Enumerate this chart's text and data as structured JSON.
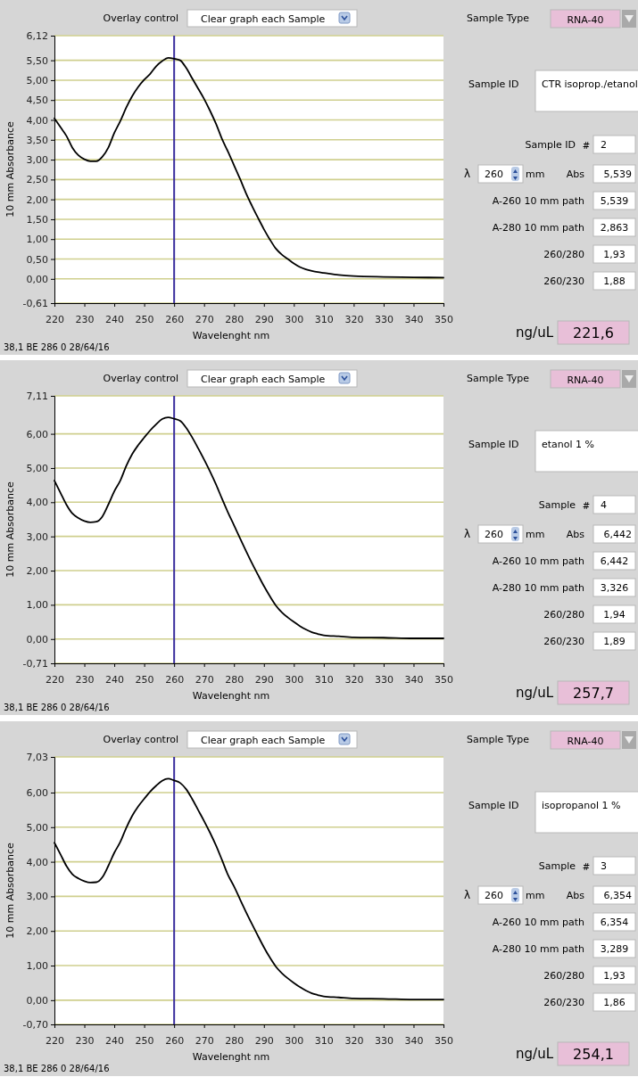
{
  "chart_data": [
    {
      "type": "line",
      "xlabel": "Wavelenght nm",
      "ylabel": "10 mm Absorbance",
      "xlim": [
        220,
        350
      ],
      "xticks": [
        220,
        230,
        240,
        250,
        260,
        270,
        280,
        290,
        300,
        310,
        320,
        330,
        340,
        350
      ],
      "ylim": [
        -0.61,
        6.12
      ],
      "yticks": [
        {
          "value": -0.61,
          "label": "-0,61"
        },
        {
          "value": 0,
          "label": "0,00"
        },
        {
          "value": 0.5,
          "label": "0,50"
        },
        {
          "value": 1,
          "label": "1,00"
        },
        {
          "value": 1.5,
          "label": "1,50"
        },
        {
          "value": 2,
          "label": "2,00"
        },
        {
          "value": 2.5,
          "label": "2,50"
        },
        {
          "value": 3,
          "label": "3,00"
        },
        {
          "value": 3.5,
          "label": "3,50"
        },
        {
          "value": 4,
          "label": "4,00"
        },
        {
          "value": 4.5,
          "label": "4,50"
        },
        {
          "value": 5,
          "label": "5,00"
        },
        {
          "value": 5.5,
          "label": "5,50"
        },
        {
          "value": 6.12,
          "label": "6,12"
        }
      ],
      "grid": "y",
      "ref_lines": [
        {
          "axis": "x",
          "value": 260,
          "color": "#3b2f9e"
        }
      ],
      "annotations": [
        "Overlay control",
        "Clear graph each Sample",
        "38,1  BE 286 0 28/64/16"
      ],
      "x": [
        220,
        222,
        224,
        226,
        228,
        230,
        232,
        234,
        236,
        238,
        240,
        242,
        244,
        246,
        248,
        250,
        252,
        254,
        256,
        258,
        260,
        262,
        264,
        266,
        268,
        270,
        272,
        274,
        276,
        278,
        280,
        282,
        284,
        286,
        288,
        290,
        292,
        294,
        296,
        298,
        300,
        302,
        304,
        306,
        308,
        310,
        315,
        320,
        330,
        340,
        350
      ],
      "series": [
        {
          "color": "#000000",
          "values": [
            4.04,
            3.82,
            3.6,
            3.3,
            3.11,
            3.01,
            2.96,
            2.96,
            3.07,
            3.3,
            3.67,
            3.97,
            4.31,
            4.6,
            4.83,
            5.01,
            5.16,
            5.35,
            5.48,
            5.56,
            5.54,
            5.5,
            5.31,
            5.05,
            4.79,
            4.53,
            4.23,
            3.9,
            3.52,
            3.2,
            2.86,
            2.52,
            2.16,
            1.84,
            1.54,
            1.25,
            0.99,
            0.76,
            0.61,
            0.5,
            0.39,
            0.3,
            0.24,
            0.2,
            0.17,
            0.15,
            0.1,
            0.07,
            0.05,
            0.04,
            0.03
          ]
        }
      ]
    },
    {
      "type": "other",
      "annotations": [
        "Sample Type",
        "RNA-40",
        "Sample ID",
        "CTR isoprop./etanol",
        "Sample ID",
        "#",
        "2",
        "λ",
        "260",
        "mm",
        "Abs",
        "5,539",
        "A-260 10 mm path",
        "5,539",
        "A-280 10 mm path",
        "2,863",
        "260/280",
        "1,93",
        "260/230",
        "1,88",
        "ng/uL",
        "221,6"
      ]
    },
    {
      "type": "line",
      "xlabel": "Wavelenght nm",
      "ylabel": "10 mm Absorbance",
      "xlim": [
        220,
        350
      ],
      "xticks": [
        220,
        230,
        240,
        250,
        260,
        270,
        280,
        290,
        300,
        310,
        320,
        330,
        340,
        350
      ],
      "ylim": [
        -0.71,
        7.11
      ],
      "yticks": [
        {
          "value": -0.71,
          "label": "-0,71"
        },
        {
          "value": 0,
          "label": "0,00"
        },
        {
          "value": 1,
          "label": "1,00"
        },
        {
          "value": 2,
          "label": "2,00"
        },
        {
          "value": 3,
          "label": "3,00"
        },
        {
          "value": 4,
          "label": "4,00"
        },
        {
          "value": 5,
          "label": "5,00"
        },
        {
          "value": 6,
          "label": "6,00"
        },
        {
          "value": 7.11,
          "label": "7,11"
        }
      ],
      "grid": "y",
      "ref_lines": [
        {
          "axis": "x",
          "value": 260,
          "color": "#3b2f9e"
        }
      ],
      "annotations": [
        "Overlay control",
        "Clear graph each Sample",
        "38,1  BE 286 0 28/64/16"
      ],
      "x": [
        220,
        222,
        224,
        226,
        228,
        230,
        232,
        234,
        236,
        238,
        240,
        242,
        244,
        246,
        248,
        250,
        252,
        254,
        256,
        258,
        260,
        262,
        264,
        266,
        268,
        270,
        272,
        274,
        276,
        278,
        280,
        282,
        284,
        286,
        288,
        290,
        292,
        294,
        296,
        298,
        300,
        302,
        304,
        306,
        308,
        310,
        315,
        320,
        330,
        340,
        350
      ],
      "series": [
        {
          "color": "#000000",
          "values": [
            4.63,
            4.28,
            3.93,
            3.67,
            3.54,
            3.45,
            3.41,
            3.43,
            3.58,
            3.93,
            4.32,
            4.63,
            5.06,
            5.41,
            5.67,
            5.89,
            6.1,
            6.28,
            6.43,
            6.48,
            6.44,
            6.38,
            6.18,
            5.9,
            5.58,
            5.25,
            4.9,
            4.52,
            4.1,
            3.7,
            3.33,
            2.95,
            2.58,
            2.22,
            1.88,
            1.55,
            1.25,
            0.98,
            0.78,
            0.63,
            0.5,
            0.38,
            0.28,
            0.2,
            0.15,
            0.11,
            0.08,
            0.05,
            0.04,
            0.02,
            0.02
          ]
        }
      ]
    },
    {
      "type": "other",
      "annotations": [
        "Sample Type",
        "RNA-40",
        "Sample ID",
        "etanol 1 %",
        "Sample",
        "#",
        "4",
        "λ",
        "260",
        "mm",
        "Abs",
        "6,442",
        "A-260 10 mm path",
        "6,442",
        "A-280 10 mm path",
        "3,326",
        "260/280",
        "1,94",
        "260/230",
        "1,89",
        "ng/uL",
        "257,7"
      ]
    },
    {
      "type": "line",
      "xlabel": "Wavelenght nm",
      "ylabel": "10 mm Absorbance",
      "xlim": [
        220,
        350
      ],
      "xticks": [
        220,
        230,
        240,
        250,
        260,
        270,
        280,
        290,
        300,
        310,
        320,
        330,
        340,
        350
      ],
      "ylim": [
        -0.7,
        7.03
      ],
      "yticks": [
        {
          "value": -0.7,
          "label": "-0,70"
        },
        {
          "value": 0,
          "label": "0,00"
        },
        {
          "value": 1,
          "label": "1,00"
        },
        {
          "value": 2,
          "label": "2,00"
        },
        {
          "value": 3,
          "label": "3,00"
        },
        {
          "value": 4,
          "label": "4,00"
        },
        {
          "value": 5,
          "label": "5,00"
        },
        {
          "value": 6,
          "label": "6,00"
        },
        {
          "value": 7.03,
          "label": "7,03"
        }
      ],
      "grid": "y",
      "ref_lines": [
        {
          "axis": "x",
          "value": 260,
          "color": "#3b2f9e"
        }
      ],
      "annotations": [
        "Overlay control",
        "Clear graph each Sample",
        "38,1  BE 286 0 28/64/16"
      ],
      "x": [
        220,
        222,
        224,
        226,
        228,
        230,
        232,
        234,
        236,
        238,
        240,
        242,
        244,
        246,
        248,
        250,
        252,
        254,
        256,
        258,
        260,
        262,
        264,
        266,
        268,
        270,
        272,
        274,
        276,
        278,
        280,
        282,
        284,
        286,
        288,
        290,
        292,
        294,
        296,
        298,
        300,
        302,
        304,
        306,
        308,
        310,
        315,
        320,
        330,
        340,
        350
      ],
      "series": [
        {
          "color": "#000000",
          "values": [
            4.55,
            4.22,
            3.88,
            3.64,
            3.52,
            3.44,
            3.4,
            3.41,
            3.55,
            3.88,
            4.26,
            4.57,
            4.98,
            5.33,
            5.6,
            5.82,
            6.03,
            6.2,
            6.34,
            6.4,
            6.35,
            6.28,
            6.1,
            5.82,
            5.5,
            5.18,
            4.84,
            4.47,
            4.05,
            3.62,
            3.29,
            2.92,
            2.55,
            2.2,
            1.86,
            1.53,
            1.23,
            0.97,
            0.78,
            0.63,
            0.5,
            0.38,
            0.28,
            0.2,
            0.15,
            0.11,
            0.08,
            0.05,
            0.04,
            0.02,
            0.02
          ]
        }
      ]
    },
    {
      "type": "other",
      "annotations": [
        "Sample Type",
        "RNA-40",
        "Sample ID",
        "isopropanol 1 %",
        "Sample",
        "#",
        "3",
        "λ",
        "260",
        "mm",
        "Abs",
        "6,354",
        "A-260 10 mm path",
        "6,354",
        "A-280 10 mm path",
        "3,289",
        "260/280",
        "1,93",
        "260/230",
        "1,86",
        "ng/uL",
        "254,1"
      ]
    }
  ]
}
